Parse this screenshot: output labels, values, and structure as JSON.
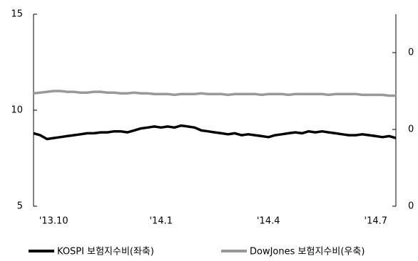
{
  "chart_data": {
    "type": "line",
    "categories": [
      null,
      null,
      null,
      "'13.10",
      null,
      null,
      null,
      null,
      null,
      null,
      null,
      null,
      null,
      null,
      null,
      null,
      null,
      null,
      null,
      "'14.1",
      null,
      null,
      null,
      null,
      null,
      null,
      null,
      null,
      null,
      null,
      null,
      null,
      null,
      null,
      null,
      "'14.4",
      null,
      null,
      null,
      null,
      null,
      null,
      null,
      null,
      null,
      null,
      null,
      null,
      null,
      null,
      null,
      "'14.7",
      null,
      null,
      null
    ],
    "series": [
      {
        "name": "KOSPI 보험지수비(좌축)",
        "color": "#000000",
        "values": [
          8.8,
          8.7,
          8.5,
          8.55,
          8.6,
          8.65,
          8.7,
          8.75,
          8.8,
          8.8,
          8.85,
          8.85,
          8.9,
          8.9,
          8.85,
          8.95,
          9.05,
          9.1,
          9.15,
          9.1,
          9.15,
          9.1,
          9.2,
          9.15,
          9.1,
          8.95,
          8.9,
          8.85,
          8.8,
          8.75,
          8.8,
          8.7,
          8.75,
          8.7,
          8.65,
          8.6,
          8.7,
          8.75,
          8.8,
          8.85,
          8.8,
          8.9,
          8.85,
          8.9,
          8.85,
          8.8,
          8.75,
          8.7,
          8.7,
          8.75,
          8.7,
          8.65,
          8.6,
          8.65,
          8.55
        ]
      },
      {
        "name": "DowJones 보험지수비(우축)",
        "color": "#999999",
        "axis": "y2",
        "values": [
          0.747,
          0.748,
          0.749,
          0.75,
          0.75,
          0.749,
          0.749,
          0.748,
          0.748,
          0.749,
          0.749,
          0.748,
          0.748,
          0.747,
          0.747,
          0.748,
          0.747,
          0.747,
          0.746,
          0.746,
          0.746,
          0.745,
          0.746,
          0.746,
          0.746,
          0.747,
          0.746,
          0.746,
          0.746,
          0.745,
          0.746,
          0.746,
          0.746,
          0.746,
          0.745,
          0.746,
          0.746,
          0.746,
          0.745,
          0.746,
          0.746,
          0.746,
          0.746,
          0.746,
          0.745,
          0.746,
          0.746,
          0.746,
          0.746,
          0.745,
          0.745,
          0.745,
          0.745,
          0.744,
          0.744
        ]
      }
    ],
    "ylim": [
      5,
      15
    ],
    "yticks": [
      5,
      10,
      15
    ],
    "y2lim": [
      0.6,
      0.85
    ],
    "y2ticks": [
      {
        "value": 0.6,
        "label": "0"
      },
      {
        "value": 0.7,
        "label": "0"
      },
      {
        "value": 0.8,
        "label": "0"
      }
    ],
    "legend": "bottom"
  }
}
